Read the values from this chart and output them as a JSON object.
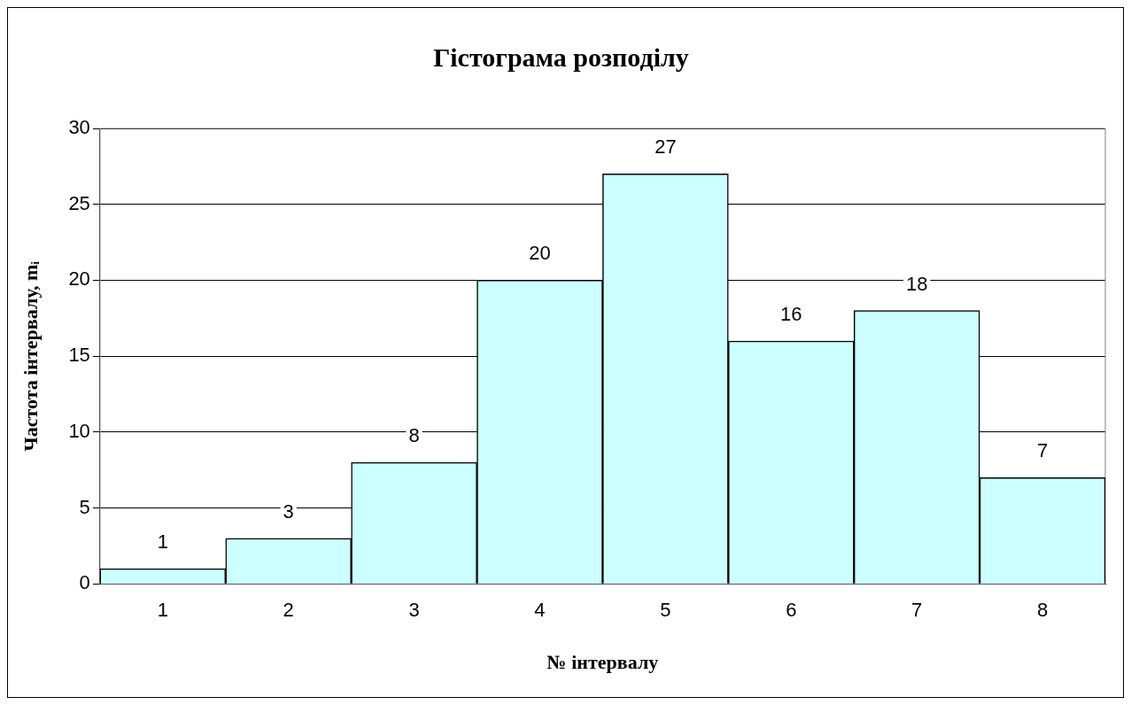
{
  "chart_data": {
    "type": "bar",
    "title": "Гістограма розподілу",
    "xlabel": "№ інтервалу",
    "ylabel": "Частота інтервалу, mᵢ",
    "categories": [
      "1",
      "2",
      "3",
      "4",
      "5",
      "6",
      "7",
      "8"
    ],
    "values": [
      1,
      3,
      8,
      20,
      27,
      16,
      18,
      7
    ],
    "color": "#ccffff",
    "ylim": [
      0,
      30
    ],
    "yticks": [
      0,
      5,
      10,
      15,
      20,
      25,
      30
    ],
    "grid": "y",
    "data_labels": true
  }
}
